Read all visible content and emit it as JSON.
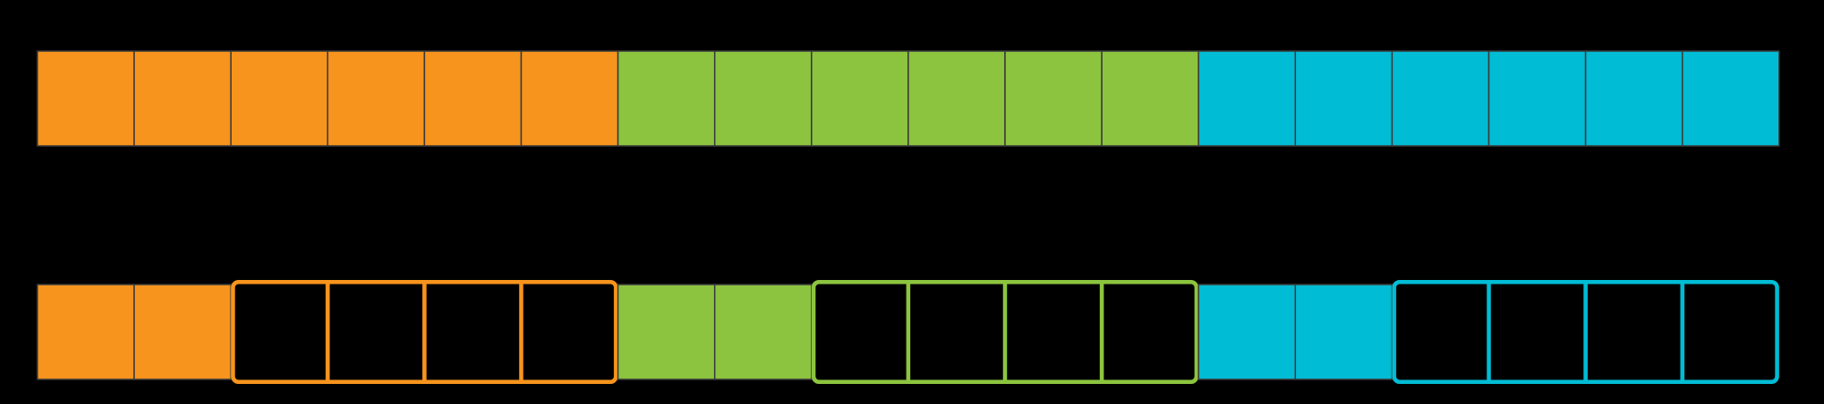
{
  "colors": {
    "background": "#000000",
    "orange": "#F7941D",
    "green": "#8CC43F",
    "cyan": "#00BCD4",
    "divider": "#3A3A3A"
  },
  "rows": [
    {
      "name": "full-bar",
      "groups": [
        {
          "color": "orange",
          "filled": 6,
          "outlined": 0
        },
        {
          "color": "green",
          "filled": 6,
          "outlined": 0
        },
        {
          "color": "cyan",
          "filled": 6,
          "outlined": 0
        }
      ]
    },
    {
      "name": "partial-bar",
      "groups": [
        {
          "color": "orange",
          "filled": 2,
          "outlined": 4
        },
        {
          "color": "green",
          "filled": 2,
          "outlined": 4
        },
        {
          "color": "cyan",
          "filled": 2,
          "outlined": 4
        }
      ]
    }
  ]
}
